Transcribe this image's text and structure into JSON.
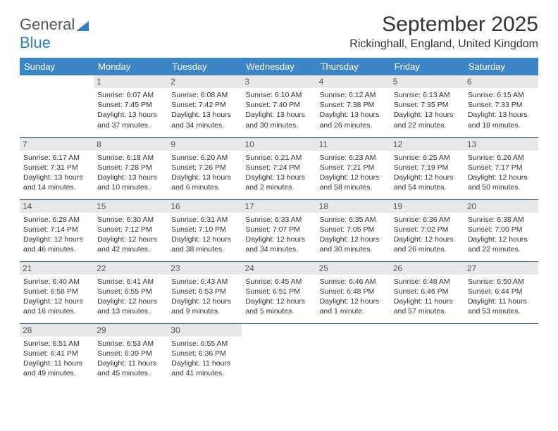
{
  "brand": {
    "part1": "General",
    "part2": "Blue"
  },
  "title": "September 2025",
  "location": "Rickinghall, England, United Kingdom",
  "colors": {
    "header_bg": "#3d86c6",
    "header_text": "#ffffff",
    "border": "#2d5f8f",
    "daynum_bg": "#e8e8e8",
    "logo_blue": "#2f7fc1"
  },
  "weekday_headers": [
    "Sunday",
    "Monday",
    "Tuesday",
    "Wednesday",
    "Thursday",
    "Friday",
    "Saturday"
  ],
  "grid": [
    [
      {
        "day": "",
        "lines": [
          "",
          "",
          "",
          ""
        ]
      },
      {
        "day": "1",
        "lines": [
          "Sunrise: 6:07 AM",
          "Sunset: 7:45 PM",
          "Daylight: 13 hours",
          "and 37 minutes."
        ]
      },
      {
        "day": "2",
        "lines": [
          "Sunrise: 6:08 AM",
          "Sunset: 7:42 PM",
          "Daylight: 13 hours",
          "and 34 minutes."
        ]
      },
      {
        "day": "3",
        "lines": [
          "Sunrise: 6:10 AM",
          "Sunset: 7:40 PM",
          "Daylight: 13 hours",
          "and 30 minutes."
        ]
      },
      {
        "day": "4",
        "lines": [
          "Sunrise: 6:12 AM",
          "Sunset: 7:38 PM",
          "Daylight: 13 hours",
          "and 26 minutes."
        ]
      },
      {
        "day": "5",
        "lines": [
          "Sunrise: 6:13 AM",
          "Sunset: 7:35 PM",
          "Daylight: 13 hours",
          "and 22 minutes."
        ]
      },
      {
        "day": "6",
        "lines": [
          "Sunrise: 6:15 AM",
          "Sunset: 7:33 PM",
          "Daylight: 13 hours",
          "and 18 minutes."
        ]
      }
    ],
    [
      {
        "day": "7",
        "lines": [
          "Sunrise: 6:17 AM",
          "Sunset: 7:31 PM",
          "Daylight: 13 hours",
          "and 14 minutes."
        ]
      },
      {
        "day": "8",
        "lines": [
          "Sunrise: 6:18 AM",
          "Sunset: 7:28 PM",
          "Daylight: 13 hours",
          "and 10 minutes."
        ]
      },
      {
        "day": "9",
        "lines": [
          "Sunrise: 6:20 AM",
          "Sunset: 7:26 PM",
          "Daylight: 13 hours",
          "and 6 minutes."
        ]
      },
      {
        "day": "10",
        "lines": [
          "Sunrise: 6:21 AM",
          "Sunset: 7:24 PM",
          "Daylight: 13 hours",
          "and 2 minutes."
        ]
      },
      {
        "day": "11",
        "lines": [
          "Sunrise: 6:23 AM",
          "Sunset: 7:21 PM",
          "Daylight: 12 hours",
          "and 58 minutes."
        ]
      },
      {
        "day": "12",
        "lines": [
          "Sunrise: 6:25 AM",
          "Sunset: 7:19 PM",
          "Daylight: 12 hours",
          "and 54 minutes."
        ]
      },
      {
        "day": "13",
        "lines": [
          "Sunrise: 6:26 AM",
          "Sunset: 7:17 PM",
          "Daylight: 12 hours",
          "and 50 minutes."
        ]
      }
    ],
    [
      {
        "day": "14",
        "lines": [
          "Sunrise: 6:28 AM",
          "Sunset: 7:14 PM",
          "Daylight: 12 hours",
          "and 46 minutes."
        ]
      },
      {
        "day": "15",
        "lines": [
          "Sunrise: 6:30 AM",
          "Sunset: 7:12 PM",
          "Daylight: 12 hours",
          "and 42 minutes."
        ]
      },
      {
        "day": "16",
        "lines": [
          "Sunrise: 6:31 AM",
          "Sunset: 7:10 PM",
          "Daylight: 12 hours",
          "and 38 minutes."
        ]
      },
      {
        "day": "17",
        "lines": [
          "Sunrise: 6:33 AM",
          "Sunset: 7:07 PM",
          "Daylight: 12 hours",
          "and 34 minutes."
        ]
      },
      {
        "day": "18",
        "lines": [
          "Sunrise: 6:35 AM",
          "Sunset: 7:05 PM",
          "Daylight: 12 hours",
          "and 30 minutes."
        ]
      },
      {
        "day": "19",
        "lines": [
          "Sunrise: 6:36 AM",
          "Sunset: 7:02 PM",
          "Daylight: 12 hours",
          "and 26 minutes."
        ]
      },
      {
        "day": "20",
        "lines": [
          "Sunrise: 6:38 AM",
          "Sunset: 7:00 PM",
          "Daylight: 12 hours",
          "and 22 minutes."
        ]
      }
    ],
    [
      {
        "day": "21",
        "lines": [
          "Sunrise: 6:40 AM",
          "Sunset: 6:58 PM",
          "Daylight: 12 hours",
          "and 18 minutes."
        ]
      },
      {
        "day": "22",
        "lines": [
          "Sunrise: 6:41 AM",
          "Sunset: 6:55 PM",
          "Daylight: 12 hours",
          "and 13 minutes."
        ]
      },
      {
        "day": "23",
        "lines": [
          "Sunrise: 6:43 AM",
          "Sunset: 6:53 PM",
          "Daylight: 12 hours",
          "and 9 minutes."
        ]
      },
      {
        "day": "24",
        "lines": [
          "Sunrise: 6:45 AM",
          "Sunset: 6:51 PM",
          "Daylight: 12 hours",
          "and 5 minutes."
        ]
      },
      {
        "day": "25",
        "lines": [
          "Sunrise: 6:46 AM",
          "Sunset: 6:48 PM",
          "Daylight: 12 hours",
          "and 1 minute."
        ]
      },
      {
        "day": "26",
        "lines": [
          "Sunrise: 6:48 AM",
          "Sunset: 6:46 PM",
          "Daylight: 11 hours",
          "and 57 minutes."
        ]
      },
      {
        "day": "27",
        "lines": [
          "Sunrise: 6:50 AM",
          "Sunset: 6:44 PM",
          "Daylight: 11 hours",
          "and 53 minutes."
        ]
      }
    ],
    [
      {
        "day": "28",
        "lines": [
          "Sunrise: 6:51 AM",
          "Sunset: 6:41 PM",
          "Daylight: 11 hours",
          "and 49 minutes."
        ]
      },
      {
        "day": "29",
        "lines": [
          "Sunrise: 6:53 AM",
          "Sunset: 6:39 PM",
          "Daylight: 11 hours",
          "and 45 minutes."
        ]
      },
      {
        "day": "30",
        "lines": [
          "Sunrise: 6:55 AM",
          "Sunset: 6:36 PM",
          "Daylight: 11 hours",
          "and 41 minutes."
        ]
      },
      {
        "day": "",
        "lines": [
          "",
          "",
          "",
          ""
        ]
      },
      {
        "day": "",
        "lines": [
          "",
          "",
          "",
          ""
        ]
      },
      {
        "day": "",
        "lines": [
          "",
          "",
          "",
          ""
        ]
      },
      {
        "day": "",
        "lines": [
          "",
          "",
          "",
          ""
        ]
      }
    ]
  ]
}
